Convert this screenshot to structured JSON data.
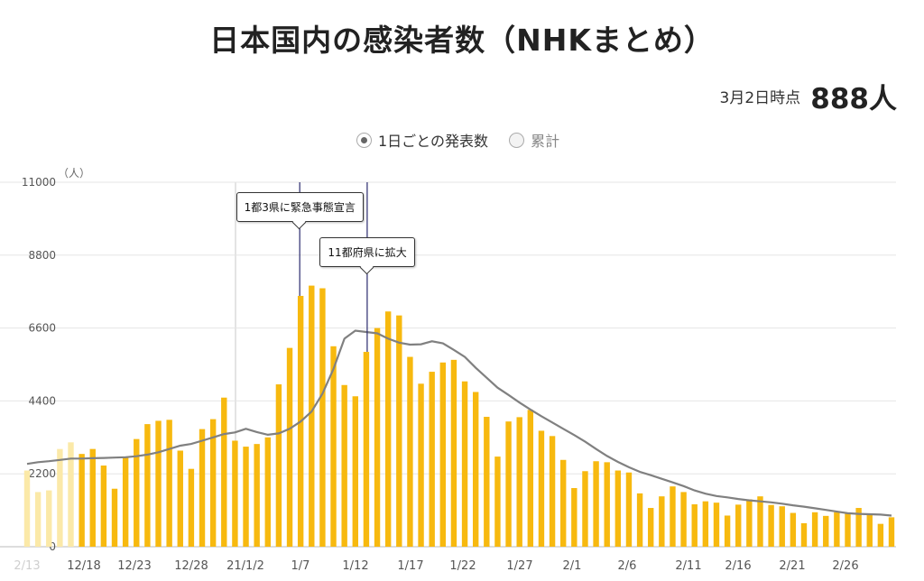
{
  "header": {
    "title": "日本国内の感染者数（NHKまとめ）",
    "asof_label": "3月2日時点",
    "asof_value": "888人"
  },
  "toggle": {
    "daily_label": "1日ごとの発表数",
    "cumulative_label": "累計",
    "selected": "daily"
  },
  "colors": {
    "bar": "#f7b90f",
    "bar_faded": "#fbe9a8",
    "avg_line": "#808080",
    "event_line": "#2a2a6e",
    "grid": "#e6e6e6"
  },
  "chart_data": {
    "type": "bar",
    "y_unit": "（人）",
    "ylim": [
      0,
      11000
    ],
    "yticks": [
      0,
      2200,
      4400,
      6600,
      8800,
      11000
    ],
    "x_tick_labels": [
      "2/13",
      "12/18",
      "12/23",
      "12/28",
      "21/1/2",
      "1/7",
      "1/12",
      "1/17",
      "1/22",
      "1/27",
      "2/1",
      "2/6",
      "2/11",
      "2/16",
      "2/21",
      "2/26"
    ],
    "series": [
      {
        "kind": "bars",
        "faded_count": 5,
        "values": [
          2300,
          1650,
          1700,
          2950,
          3150,
          2800,
          2950,
          2450,
          1750,
          2700,
          3250,
          3700,
          3800,
          3830,
          2900,
          2350,
          3550,
          3850,
          4500,
          3200,
          3020,
          3100,
          3300,
          4900,
          6000,
          7570,
          7880,
          7800,
          6050,
          4880,
          4540,
          5880,
          6600,
          7100,
          6980,
          5730,
          4920,
          5280,
          5560,
          5640,
          4990,
          4670,
          3920,
          2720,
          3780,
          3910,
          4130,
          3500,
          3340,
          2620,
          1770,
          2280,
          2580,
          2550,
          2300,
          2240,
          1610,
          1170,
          1520,
          1820,
          1650,
          1280,
          1370,
          1330,
          940,
          1270,
          1430,
          1520,
          1260,
          1220,
          1020,
          710,
          1040,
          930,
          1040,
          1000,
          1170,
          1000,
          690,
          888
        ]
      },
      {
        "kind": "line",
        "values": [
          2500,
          2550,
          2580,
          2620,
          2660,
          2660,
          2670,
          2680,
          2690,
          2700,
          2730,
          2780,
          2850,
          2950,
          3050,
          3100,
          3200,
          3300,
          3400,
          3450,
          3560,
          3460,
          3380,
          3420,
          3560,
          3780,
          4080,
          4620,
          5360,
          6280,
          6520,
          6480,
          6440,
          6280,
          6160,
          6100,
          6110,
          6200,
          6140,
          5940,
          5730,
          5400,
          5100,
          4800,
          4580,
          4350,
          4140,
          3940,
          3750,
          3560,
          3370,
          3170,
          2950,
          2740,
          2560,
          2400,
          2260,
          2160,
          2050,
          1940,
          1830,
          1700,
          1600,
          1530,
          1490,
          1440,
          1400,
          1370,
          1340,
          1300,
          1250,
          1210,
          1160,
          1110,
          1060,
          1010,
          990,
          980,
          970,
          940
        ]
      }
    ],
    "events": [
      {
        "label": "1都3県に緊急事態宣言",
        "index": 25
      },
      {
        "label": "11都府県に拡大",
        "index": 31
      }
    ]
  }
}
